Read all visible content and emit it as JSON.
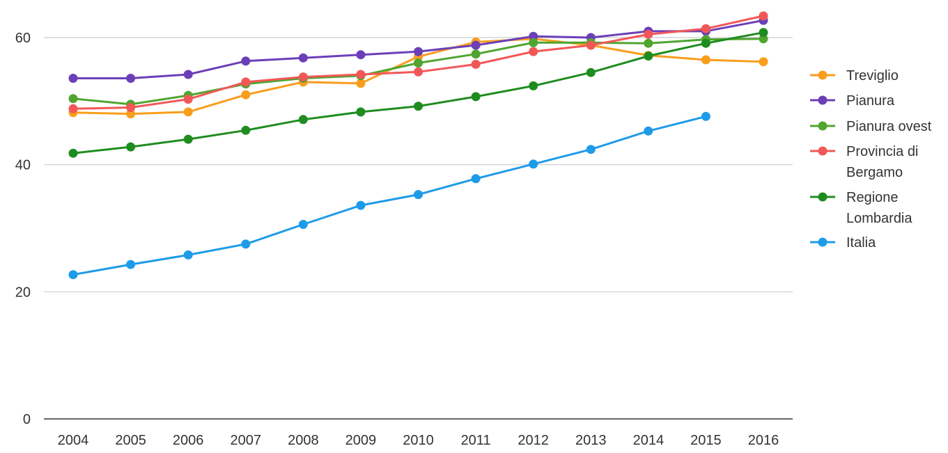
{
  "chart_data": {
    "type": "line",
    "title": "",
    "xlabel": "",
    "ylabel": "",
    "x": [
      "2004",
      "2005",
      "2006",
      "2007",
      "2008",
      "2009",
      "2010",
      "2011",
      "2012",
      "2013",
      "2014",
      "2015",
      "2016"
    ],
    "ylim": [
      0,
      63
    ],
    "yticks": [
      0,
      20,
      40,
      60
    ],
    "grid": true,
    "legend_position": "right",
    "series": [
      {
        "name": "Treviglio",
        "color": "#f99d1c",
        "values": [
          48.2,
          48.0,
          48.3,
          51.0,
          53.0,
          52.8,
          57.0,
          59.3,
          59.8,
          58.8,
          57.2,
          56.5,
          56.2
        ]
      },
      {
        "name": "Pianura",
        "color": "#6c3fb8",
        "values": [
          53.6,
          53.6,
          54.2,
          56.3,
          56.8,
          57.3,
          57.8,
          58.8,
          60.2,
          60.0,
          61.0,
          61.0,
          62.7
        ]
      },
      {
        "name": "Pianura ovest",
        "color": "#4fa52f",
        "values": [
          50.4,
          49.5,
          50.9,
          52.7,
          53.6,
          54.0,
          56.0,
          57.4,
          59.2,
          59.2,
          59.1,
          59.7,
          59.8
        ]
      },
      {
        "name": "Provincia di Bergamo",
        "color": "#f25757",
        "values": [
          48.8,
          49.0,
          50.3,
          53.0,
          53.8,
          54.2,
          54.6,
          55.8,
          57.8,
          58.8,
          60.5,
          61.4,
          63.4
        ]
      },
      {
        "name": "Regione Lombardia",
        "color": "#1f8c1f",
        "values": [
          41.8,
          42.8,
          44.0,
          45.4,
          47.1,
          48.3,
          49.2,
          50.7,
          52.4,
          54.5,
          57.1,
          59.1,
          60.8
        ]
      },
      {
        "name": "Italia",
        "color": "#1e9be8",
        "values": [
          22.7,
          24.3,
          25.8,
          27.5,
          30.6,
          33.6,
          35.3,
          37.8,
          40.1,
          42.4,
          45.3,
          47.6,
          null
        ]
      }
    ],
    "legend_entries": [
      {
        "lines": [
          "Treviglio"
        ],
        "color": "#f99d1c"
      },
      {
        "lines": [
          "Pianura"
        ],
        "color": "#6c3fb8"
      },
      {
        "lines": [
          "Pianura ovest"
        ],
        "color": "#4fa52f"
      },
      {
        "lines": [
          "Provincia di",
          "Bergamo"
        ],
        "color": "#f25757"
      },
      {
        "lines": [
          "Regione",
          "Lombardia"
        ],
        "color": "#1f8c1f"
      },
      {
        "lines": [
          "Italia"
        ],
        "color": "#1e9be8"
      }
    ]
  }
}
